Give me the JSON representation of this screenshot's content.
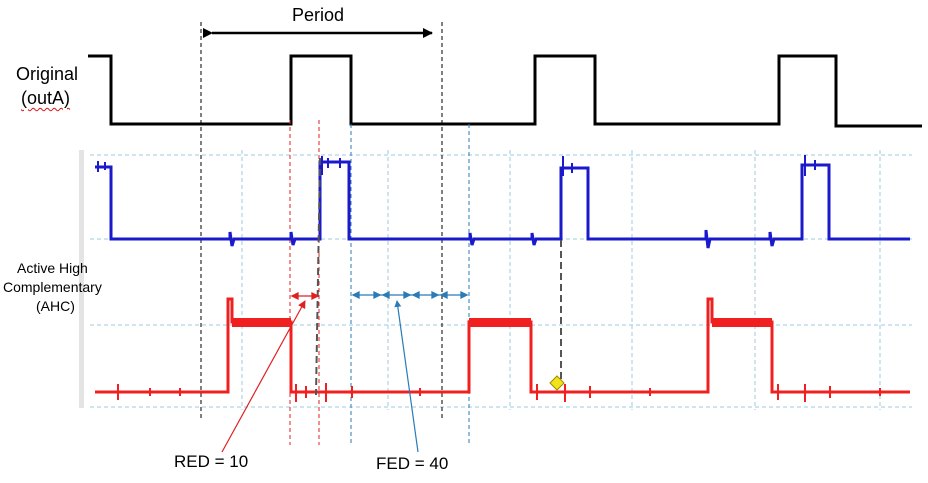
{
  "labels": {
    "period": "Period",
    "original_line1": "Original",
    "original_line2": "(outA)",
    "ahc_line1": "Active High",
    "ahc_line2": "Complementary",
    "ahc_line3": "(AHC)",
    "red": "RED = 10",
    "fed": "FED = 40"
  },
  "colors": {
    "original_wave": "#000000",
    "blue_trace": "#1a1acc",
    "red_trace": "#f02020",
    "grid": "#9ccbe0",
    "red_marker": "#e02020",
    "blue_marker": "#2a7bb8",
    "cursor": "#555555",
    "trigger_marker": "#f2e21a"
  }
}
